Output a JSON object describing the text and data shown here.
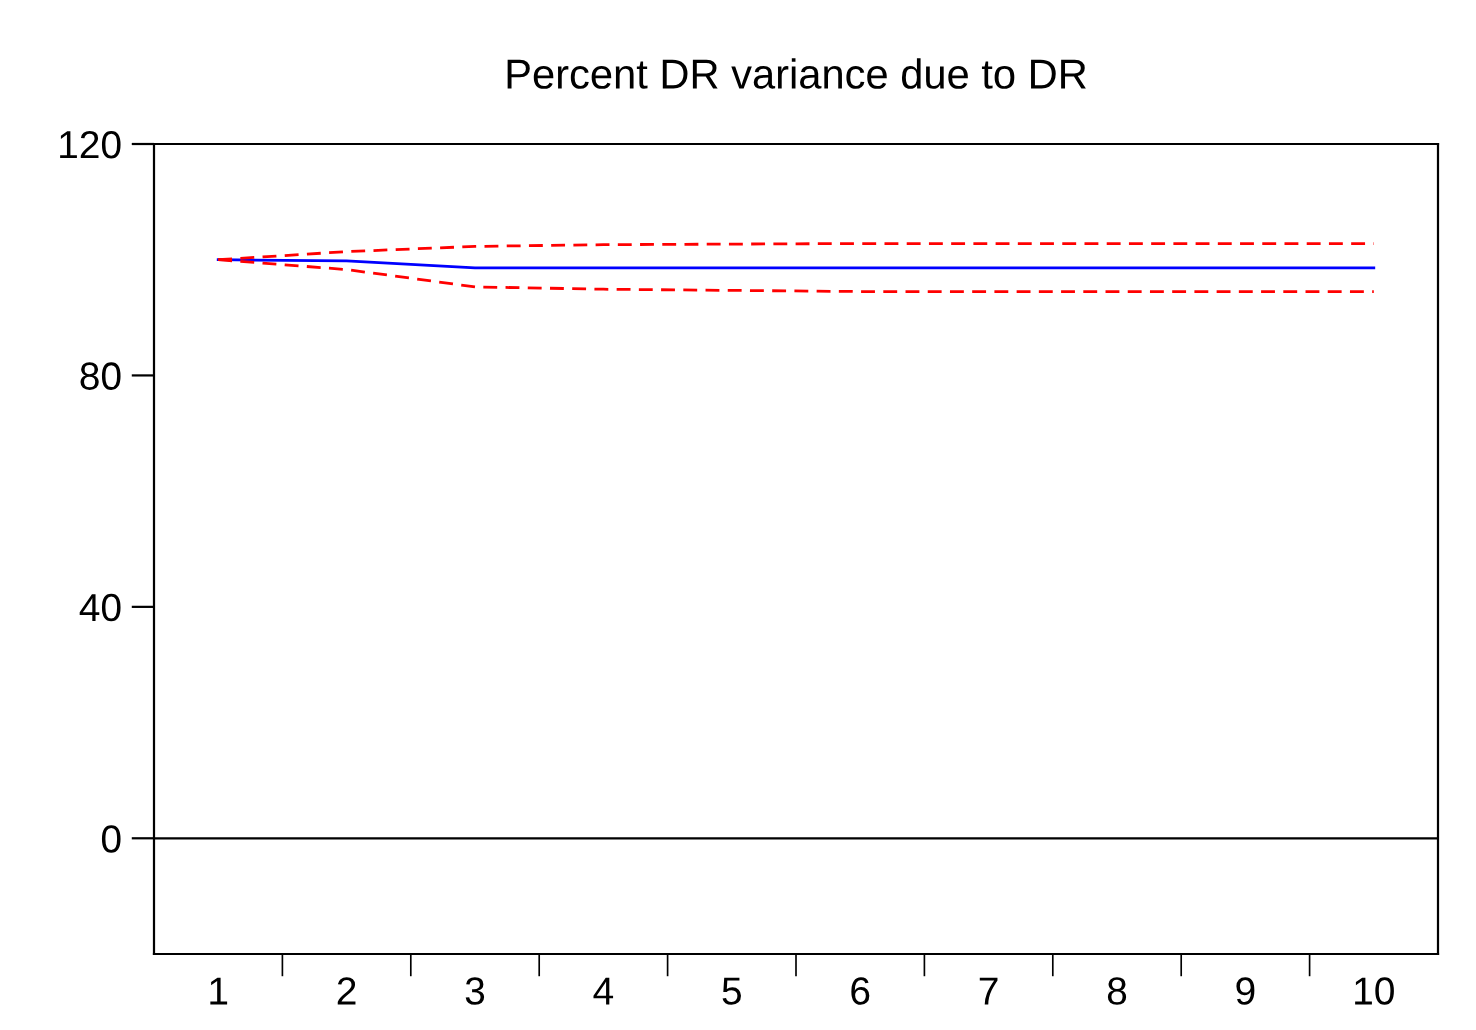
{
  "chart_data": {
    "type": "line",
    "title": "Percent DR variance due to DR",
    "categories": [
      "1",
      "2",
      "3",
      "4",
      "5",
      "6",
      "7",
      "8",
      "9",
      "10"
    ],
    "series": [
      {
        "color": "#0000ff",
        "line_style": "solid",
        "values": [
          100,
          99.8,
          98.6,
          98.6,
          98.6,
          98.6,
          98.6,
          98.6,
          98.6,
          98.6
        ]
      },
      {
        "color": "#ff0000",
        "line_style": "dashed",
        "values": [
          100,
          101.4,
          102.3,
          102.6,
          102.7,
          102.8,
          102.8,
          102.8,
          102.8,
          102.8
        ]
      },
      {
        "color": "#ff0000",
        "line_style": "dashed",
        "values": [
          100,
          98.3,
          95.3,
          94.9,
          94.7,
          94.5,
          94.5,
          94.5,
          94.5,
          94.5
        ]
      }
    ],
    "ylim": [
      -20,
      120
    ],
    "yticks": [
      0,
      40,
      80,
      120
    ],
    "ref_lines": [
      {
        "axis": "y",
        "value": 0,
        "color": "#000000",
        "line_style": "solid"
      }
    ],
    "grid": false,
    "legend": false
  }
}
